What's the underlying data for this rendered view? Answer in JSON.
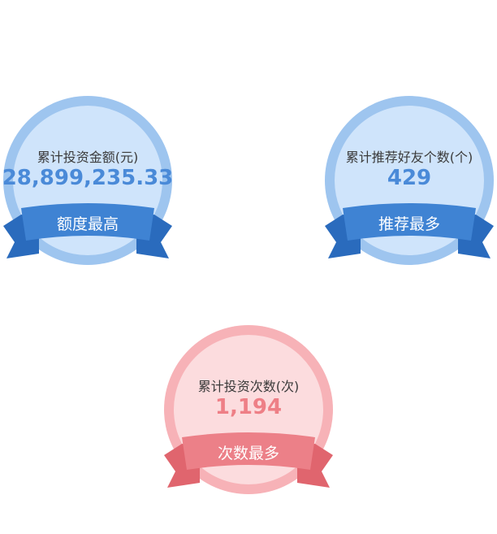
{
  "badges": [
    {
      "label": "累计投资金额(元)",
      "value": "28,899,235.33",
      "ribbon": "额度最高",
      "theme": "blue"
    },
    {
      "label": "累计推荐好友个数(个)",
      "value": "429",
      "ribbon": "推荐最多",
      "theme": "blue"
    },
    {
      "label": "累计投资次数(次)",
      "value": "1,194",
      "ribbon": "次数最多",
      "theme": "pink"
    }
  ],
  "colors": {
    "blue_ring": "#9ec5ef",
    "blue_fill": "#cfe4fb",
    "blue_ribbon": "#3f83d3",
    "blue_ribbon_dark": "#2a6bbd",
    "blue_value": "#4a8ad8",
    "pink_ring": "#f7b2b7",
    "pink_fill": "#fcdcde",
    "pink_ribbon": "#ec8088",
    "pink_ribbon_dark": "#e0656e",
    "pink_value": "#ee7f86"
  }
}
